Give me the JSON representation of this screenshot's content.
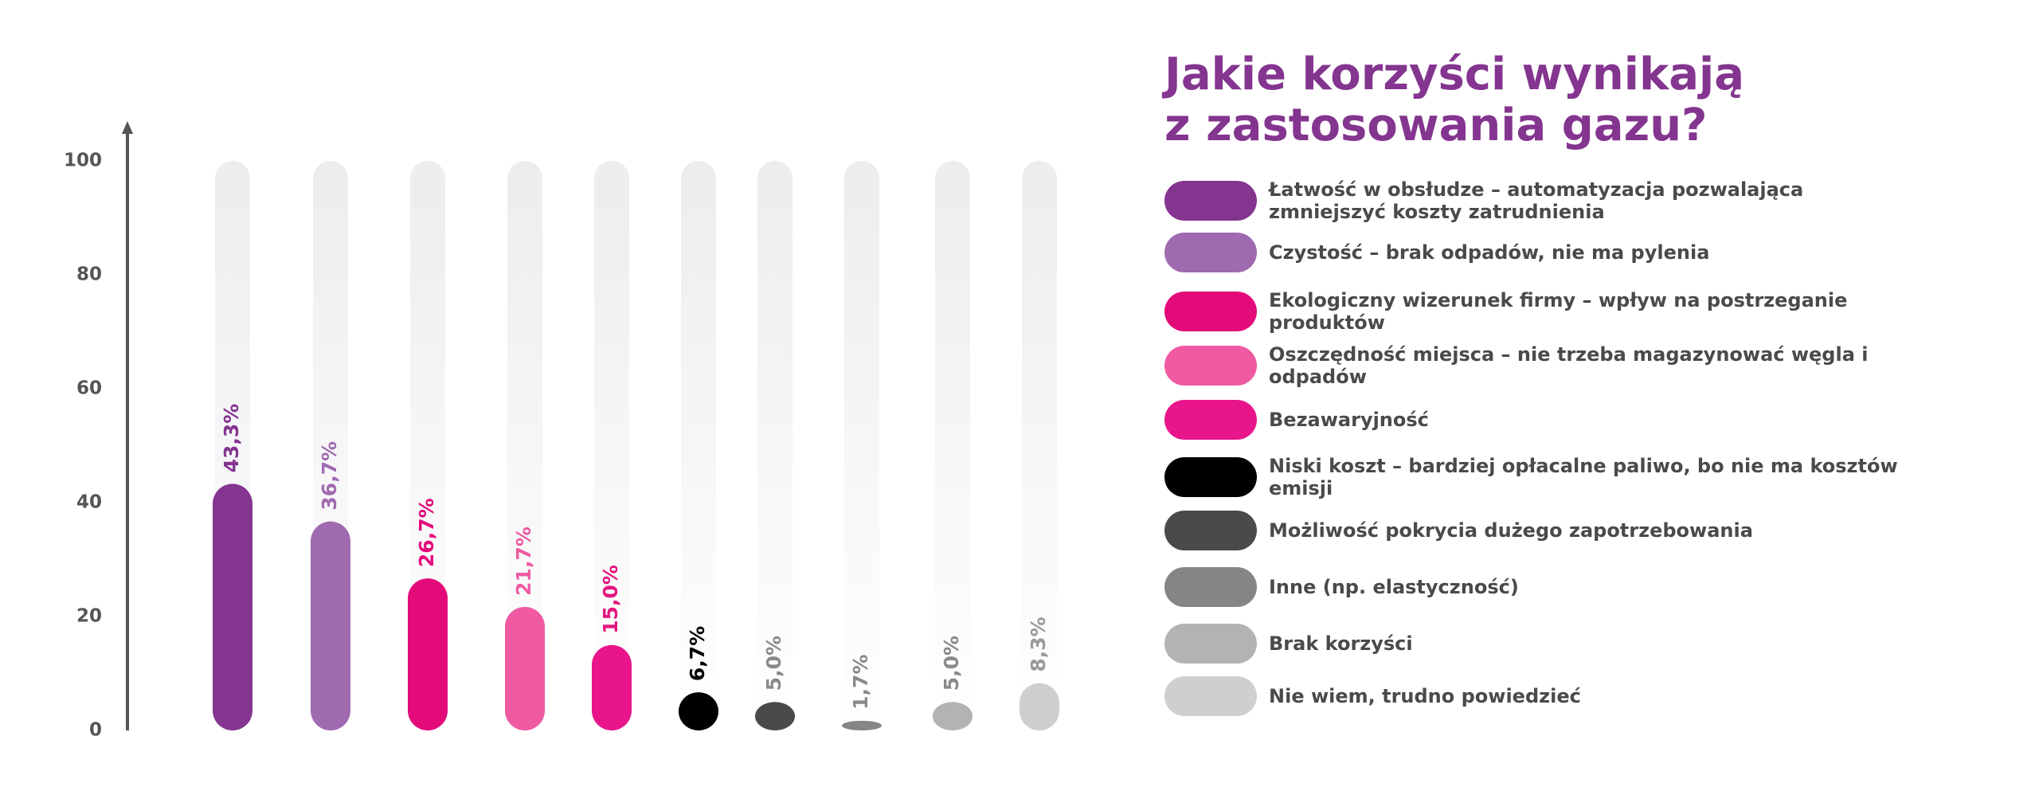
{
  "chart_data": {
    "type": "bar",
    "title": [
      "Jakie korzyści wynikają",
      "z zastosowania gazu?"
    ],
    "categories": [
      "Łatwość w obsłudze – automatyzacja pozwalająca zmniejszyć koszty zatrudnienia",
      "Czystość – brak odpadów, nie ma pylenia",
      "Ekologiczny wizerunek firmy – wpływ na postrzeganie produktów",
      "Oszczędność miejsca – nie trzeba magazynować węgla i odpadów",
      "Bezawaryjność",
      "Niski koszt – bardziej opłacalne paliwo, bo nie ma kosztów emisji",
      "Możliwość pokrycia dużego zapotrzebowania",
      "Inne (np. elastyczność)",
      "Brak korzyści",
      "Nie wiem, trudno powiedzieć"
    ],
    "values": [
      43.3,
      36.7,
      26.7,
      21.7,
      15.0,
      6.7,
      5.0,
      1.7,
      5.0,
      8.3
    ],
    "value_labels": [
      "43,3%",
      "36,7%",
      "26,7%",
      "21,7%",
      "15,0%",
      "6,7%",
      "5,0%",
      "1,7%",
      "5,0%",
      "8,3%"
    ],
    "colors": [
      "#84358f",
      "#a06ab0",
      "#e30b7a",
      "#ef5aa3",
      "#e8168a",
      "#000000",
      "#4a4a4a",
      "#858585",
      "#b3b3b3",
      "#cfcfcf"
    ],
    "label_colors": [
      "#84358f",
      "#a06ab0",
      "#e30b7a",
      "#ef5aa3",
      "#e3157e",
      "#000000",
      "#8a8a8a",
      "#8a8a8a",
      "#8a8a8a",
      "#9a9a9a"
    ],
    "ylim": [
      0,
      100
    ],
    "yticks": [
      0,
      20,
      40,
      60,
      80,
      100
    ],
    "grid": false
  }
}
